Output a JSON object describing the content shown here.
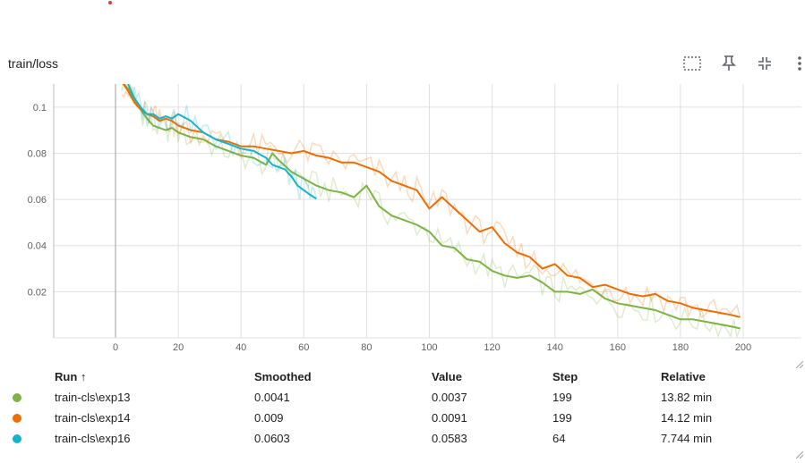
{
  "card": {
    "title": "train/loss"
  },
  "toolbar": {
    "icons": [
      "fit-domain-icon",
      "pin-icon",
      "collapse-icon",
      "more-vert-icon"
    ]
  },
  "chart_data": {
    "type": "line",
    "title": "train/loss",
    "xlabel": "",
    "ylabel": "",
    "xlim": [
      -5,
      200
    ],
    "ylim": [
      0,
      0.11
    ],
    "x_ticks": [
      0,
      20,
      40,
      60,
      80,
      100,
      120,
      140,
      160,
      180,
      200
    ],
    "y_ticks": [
      0.02,
      0.04,
      0.06,
      0.08,
      0.1
    ],
    "x_tick_labels": [
      "0",
      "20",
      "40",
      "60",
      "80",
      "100",
      "120",
      "140",
      "160",
      "180",
      "200"
    ],
    "y_tick_labels": [
      "0.02",
      "0.04",
      "0.06",
      "0.08",
      "0.1"
    ],
    "grid": true,
    "series": [
      {
        "name": "train-cls\\exp13",
        "color": "#7cb342",
        "x": [
          2,
          4,
          6,
          8,
          10,
          12,
          14,
          16,
          18,
          20,
          24,
          28,
          32,
          36,
          40,
          44,
          48,
          50,
          52,
          56,
          60,
          64,
          68,
          72,
          76,
          80,
          84,
          88,
          92,
          96,
          100,
          104,
          108,
          112,
          116,
          120,
          124,
          128,
          132,
          136,
          140,
          144,
          148,
          152,
          156,
          160,
          164,
          168,
          172,
          176,
          180,
          184,
          188,
          192,
          196,
          199
        ],
        "y": [
          0.111,
          0.108,
          0.103,
          0.099,
          0.095,
          0.092,
          0.091,
          0.09,
          0.091,
          0.089,
          0.087,
          0.086,
          0.083,
          0.081,
          0.079,
          0.078,
          0.075,
          0.08,
          0.077,
          0.072,
          0.069,
          0.066,
          0.064,
          0.063,
          0.061,
          0.066,
          0.057,
          0.053,
          0.051,
          0.049,
          0.046,
          0.04,
          0.039,
          0.034,
          0.033,
          0.029,
          0.027,
          0.026,
          0.027,
          0.024,
          0.02,
          0.02,
          0.019,
          0.021,
          0.017,
          0.015,
          0.014,
          0.013,
          0.012,
          0.01,
          0.008,
          0.008,
          0.007,
          0.006,
          0.005,
          0.0041
        ],
        "smoothed": "0.0041",
        "value": "0.0037",
        "step": "199",
        "relative": "13.82 min"
      },
      {
        "name": "train-cls\\exp14",
        "color": "#ef6c00",
        "x": [
          2,
          4,
          6,
          8,
          10,
          12,
          14,
          16,
          18,
          20,
          24,
          28,
          32,
          36,
          40,
          44,
          48,
          52,
          56,
          60,
          64,
          68,
          72,
          76,
          80,
          84,
          88,
          92,
          96,
          100,
          104,
          108,
          112,
          116,
          120,
          124,
          128,
          132,
          136,
          140,
          144,
          148,
          152,
          156,
          160,
          164,
          168,
          172,
          176,
          180,
          184,
          188,
          192,
          196,
          199
        ],
        "y": [
          0.111,
          0.107,
          0.102,
          0.099,
          0.097,
          0.096,
          0.094,
          0.095,
          0.094,
          0.092,
          0.09,
          0.089,
          0.086,
          0.085,
          0.083,
          0.083,
          0.082,
          0.081,
          0.08,
          0.081,
          0.079,
          0.078,
          0.076,
          0.076,
          0.074,
          0.072,
          0.068,
          0.066,
          0.064,
          0.056,
          0.061,
          0.056,
          0.051,
          0.046,
          0.048,
          0.041,
          0.037,
          0.035,
          0.03,
          0.032,
          0.027,
          0.026,
          0.022,
          0.023,
          0.021,
          0.019,
          0.018,
          0.019,
          0.016,
          0.015,
          0.013,
          0.012,
          0.011,
          0.01,
          0.009
        ],
        "smoothed": "0.009",
        "value": "0.0091",
        "step": "199",
        "relative": "14.12 min"
      },
      {
        "name": "train-cls\\exp16",
        "color": "#12b5cb",
        "x": [
          4,
          6,
          8,
          10,
          12,
          14,
          16,
          18,
          20,
          24,
          28,
          32,
          36,
          40,
          44,
          48,
          50,
          52,
          54,
          56,
          58,
          60,
          62,
          64
        ],
        "y": [
          0.11,
          0.104,
          0.1,
          0.097,
          0.097,
          0.095,
          0.096,
          0.095,
          0.097,
          0.094,
          0.089,
          0.086,
          0.084,
          0.082,
          0.081,
          0.078,
          0.075,
          0.074,
          0.073,
          0.07,
          0.066,
          0.064,
          0.062,
          0.0603
        ],
        "smoothed": "0.0603",
        "value": "0.0583",
        "step": "64",
        "relative": "7.744 min"
      }
    ]
  },
  "table": {
    "headers": {
      "run": "Run ↑",
      "smoothed": "Smoothed",
      "value": "Value",
      "step": "Step",
      "relative": "Relative"
    }
  }
}
